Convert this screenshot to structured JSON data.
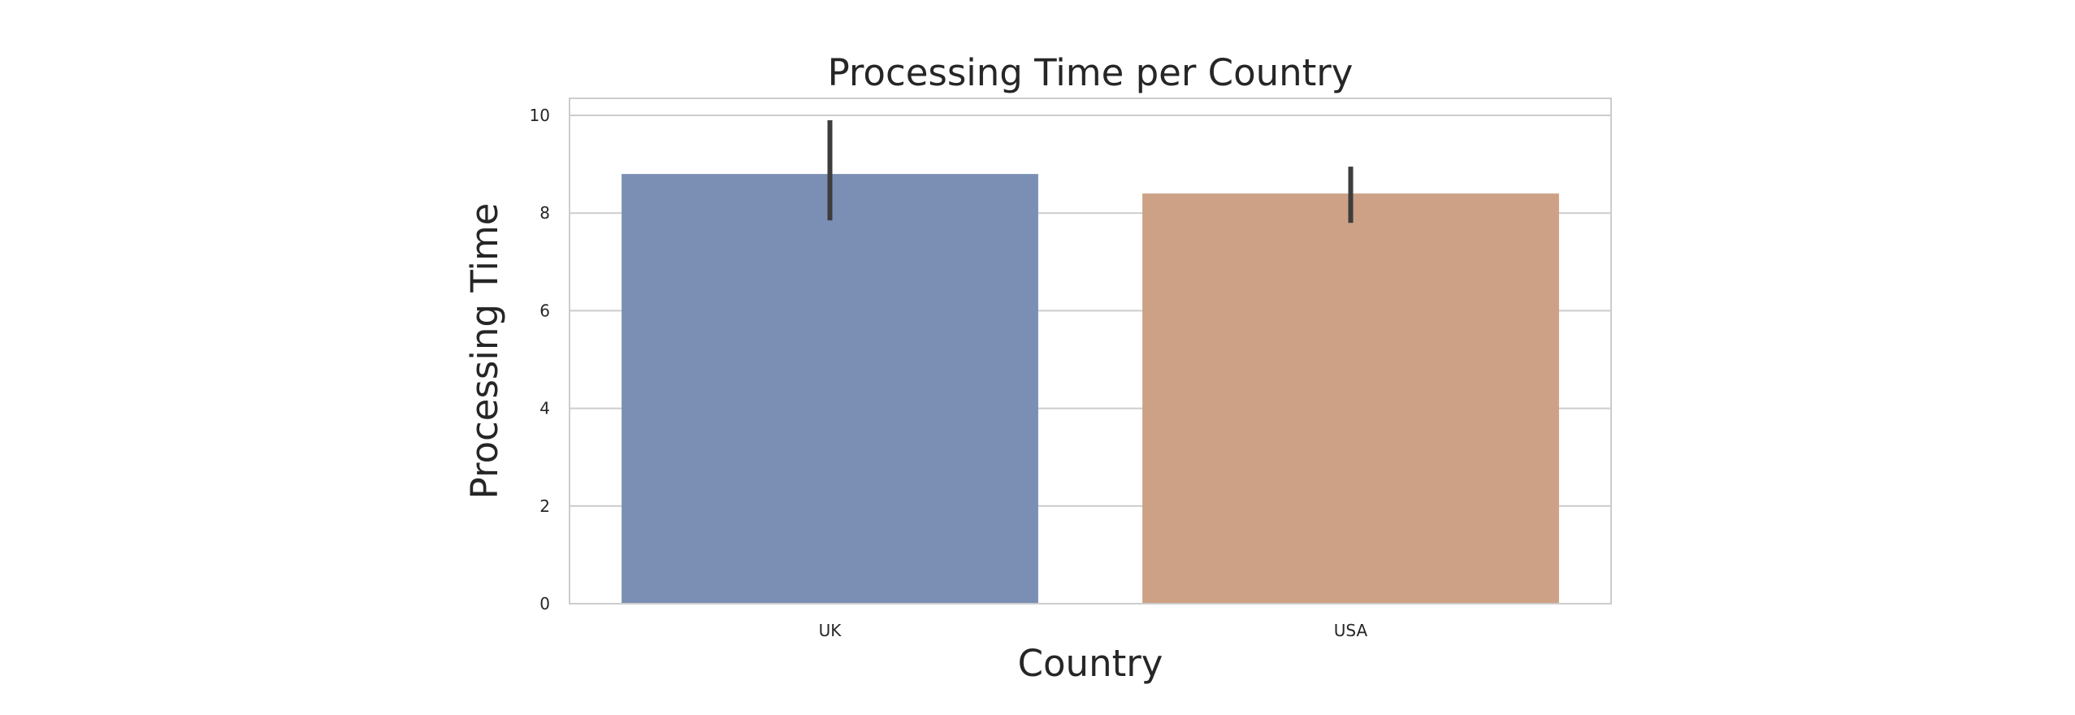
{
  "chart_data": {
    "type": "bar",
    "title": "Processing Time per Country",
    "xlabel": "Country",
    "ylabel": "Processing Time",
    "categories": [
      "UK",
      "USA"
    ],
    "values": [
      8.8,
      8.4
    ],
    "error_bars": [
      {
        "low": 7.85,
        "high": 9.9
      },
      {
        "low": 7.8,
        "high": 8.95
      }
    ],
    "ylim": [
      0,
      10.35
    ],
    "yticks": [
      0,
      2,
      4,
      6,
      8,
      10
    ],
    "grid": "horizontal",
    "colors": {
      "bars": [
        "#7b8fb4",
        "#cda185"
      ],
      "error": "#3d3d3d",
      "grid": "#cccccc",
      "frame": "#cccccc",
      "text": "#262626"
    }
  }
}
